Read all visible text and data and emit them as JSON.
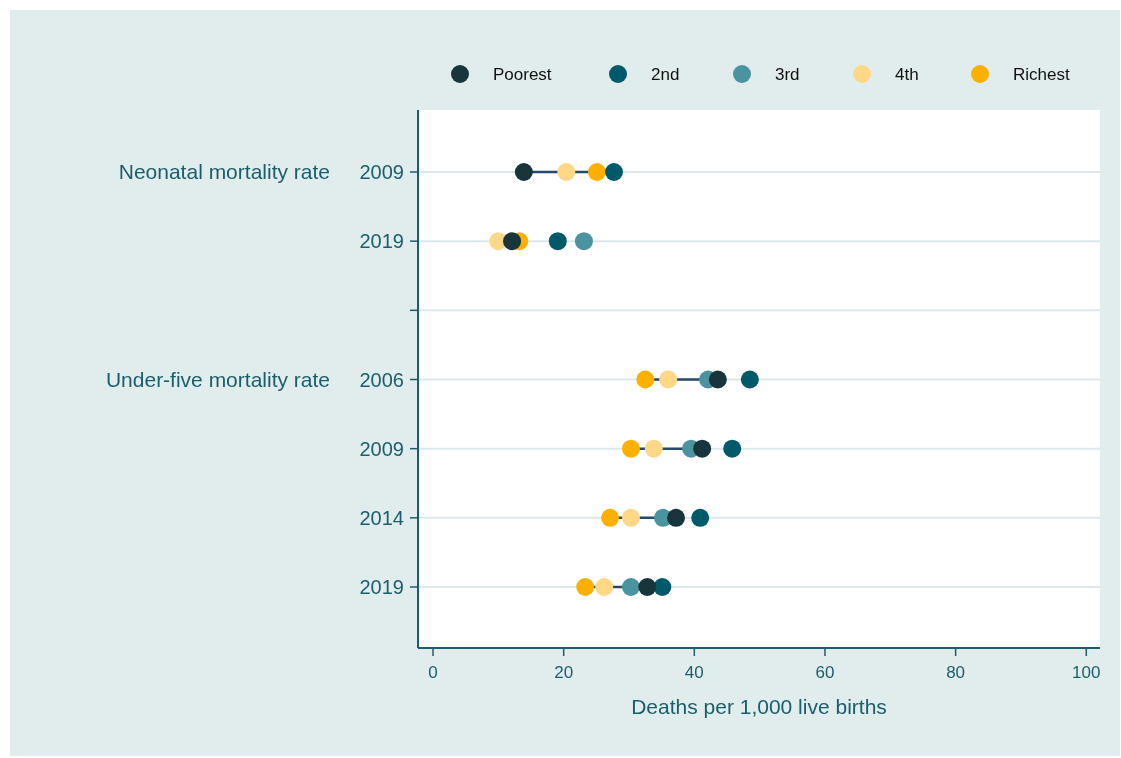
{
  "chart_data": {
    "type": "scatter",
    "orientation": "horizontal",
    "xlabel": "Deaths per 1,000 live births",
    "categories": [
      "2009",
      "2019",
      null,
      "2006",
      "2009",
      "2014",
      "2019"
    ],
    "annotations": [
      "Neonatal mortality rate",
      "Under-five mortality rate"
    ],
    "series": [
      {
        "name": "Poorest",
        "color": "#17353b",
        "values": [
          13.9,
          12.1,
          null,
          43.6,
          41.2,
          37.2,
          32.8
        ]
      },
      {
        "name": "2nd",
        "color": "#015a6a",
        "values": [
          27.7,
          19.1,
          null,
          48.5,
          45.8,
          40.9,
          35.1
        ]
      },
      {
        "name": "3rd",
        "color": "#4a939f",
        "values": [
          null,
          23.1,
          null,
          42.1,
          39.5,
          35.2,
          30.3
        ]
      },
      {
        "name": "4th",
        "color": "#fed887",
        "values": [
          20.4,
          10.0,
          null,
          36.0,
          33.8,
          30.3,
          26.2
        ]
      },
      {
        "name": "Richest",
        "color": "#fdb000",
        "values": [
          25.1,
          13.2,
          null,
          32.5,
          30.3,
          27.1,
          23.3
        ]
      }
    ],
    "xlim": [
      -2.3,
      102.1
    ],
    "xticks": [
      0,
      20,
      40,
      60,
      80,
      100
    ],
    "grid": "y",
    "legend": "top",
    "marker": "circle"
  }
}
